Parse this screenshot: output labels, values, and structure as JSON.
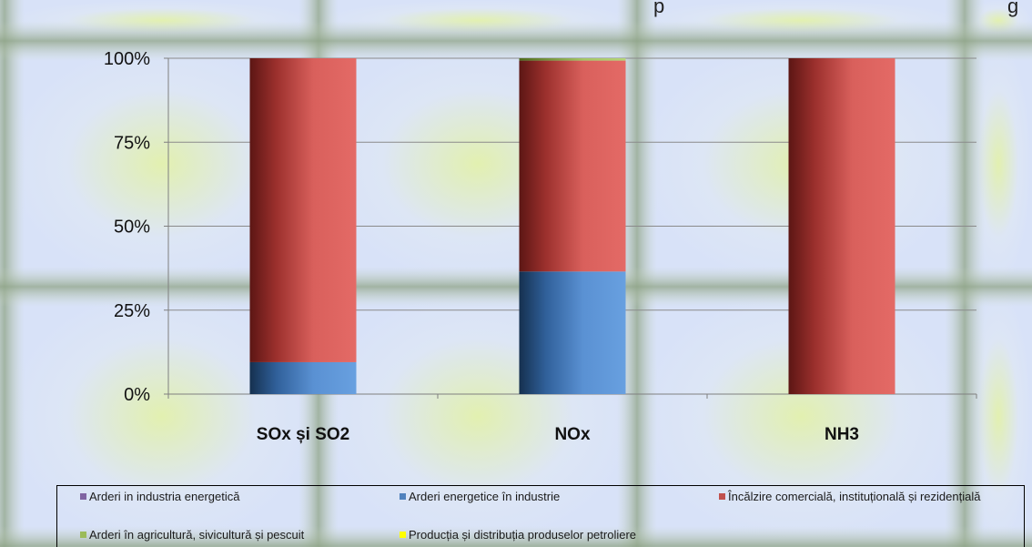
{
  "header_text": "p",
  "header_text_right": "g",
  "chart_data": {
    "type": "bar",
    "stacked": true,
    "percent": true,
    "categories": [
      "SOx și SO2",
      "NOx",
      "NH3"
    ],
    "series": [
      {
        "name": "Arderi in industria energetică",
        "color": "#8064a2",
        "values": [
          0,
          0,
          0
        ]
      },
      {
        "name": "Arderi energetice în industrie",
        "color": "#4f81bd",
        "values": [
          9.5,
          36.5,
          0
        ]
      },
      {
        "name": "Încălzire comercială, instituțională și rezidențială",
        "color": "#c0504d",
        "values": [
          90.5,
          62.8,
          100
        ]
      },
      {
        "name": "Arderi în agricultură, sivicultură și pescuit",
        "color": "#9bbb59",
        "values": [
          0,
          0.7,
          0
        ]
      },
      {
        "name": "Producția și distribuția produselor petroliere",
        "color": "#ffff00",
        "values": [
          0,
          0,
          0
        ]
      }
    ],
    "yticks": [
      "0%",
      "25%",
      "50%",
      "75%",
      "100%"
    ],
    "ylim": [
      0,
      100
    ],
    "grid": true,
    "legend_position": "bottom"
  }
}
